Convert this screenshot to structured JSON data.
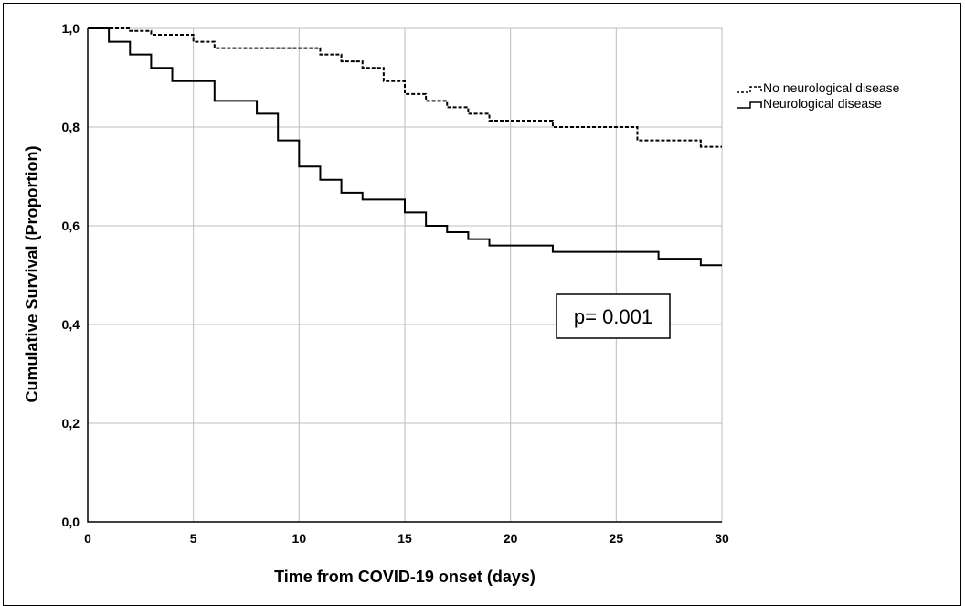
{
  "chart_data": {
    "type": "line",
    "xlabel": "Time from COVID-19 onset (days)",
    "ylabel": "Cumulative Survival (Proportion)",
    "xlim": [
      0,
      30
    ],
    "ylim": [
      0,
      1
    ],
    "x_ticks": [
      "0",
      "5",
      "10",
      "15",
      "20",
      "25",
      "30"
    ],
    "y_ticks": [
      "0,0",
      "0,2",
      "0,4",
      "0,6",
      "0,8",
      "1,0"
    ],
    "grid": true,
    "legend_position": "right",
    "step": true,
    "annotation": "p= 0.001",
    "series": [
      {
        "name": "No neurological disease",
        "style": "dashed",
        "x": [
          0,
          2,
          3,
          5,
          6,
          11,
          12,
          13,
          14,
          15,
          16,
          17,
          18,
          19,
          22,
          26,
          29,
          30
        ],
        "y": [
          1.0,
          0.995,
          0.987,
          0.973,
          0.96,
          0.947,
          0.933,
          0.92,
          0.893,
          0.867,
          0.853,
          0.84,
          0.827,
          0.813,
          0.8,
          0.773,
          0.76,
          0.76
        ]
      },
      {
        "name": "Neurological disease",
        "style": "solid",
        "x": [
          0,
          1,
          2,
          3,
          4,
          6,
          8,
          9,
          10,
          11,
          12,
          13,
          15,
          16,
          17,
          18,
          19,
          22,
          27,
          29,
          30
        ],
        "y": [
          1.0,
          0.973,
          0.947,
          0.92,
          0.893,
          0.853,
          0.827,
          0.773,
          0.72,
          0.693,
          0.667,
          0.653,
          0.627,
          0.6,
          0.587,
          0.573,
          0.56,
          0.547,
          0.533,
          0.52,
          0.52
        ]
      }
    ]
  }
}
